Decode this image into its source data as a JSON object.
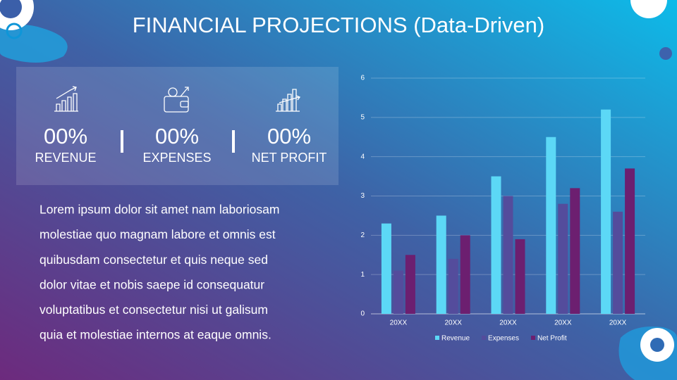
{
  "header": {
    "title": "FINANCIAL PROJECTIONS (Data-Driven)"
  },
  "stats": [
    {
      "value": "00%",
      "label": "REVENUE"
    },
    {
      "value": "00%",
      "label": "EXPENSES"
    },
    {
      "value": "00%",
      "label": "NET PROFIT"
    }
  ],
  "paragraph": {
    "lines": [
      "Lorem ipsum dolor sit amet nam laboriosam",
      "molestiae quo magnam labore et omnis est",
      "quibusdam consectetur et quis neque sed",
      "dolor vitae et nobis saepe id consequatur",
      "voluptatibus et consectetur nisi ut galisum",
      "quia et molestiae internos at eaque omnis."
    ]
  },
  "chart_data": {
    "type": "bar",
    "categories": [
      "20XX",
      "20XX",
      "20XX",
      "20XX",
      "20XX"
    ],
    "series": [
      {
        "name": "Revenue",
        "color": "#5cd8f6",
        "values": [
          2.3,
          2.5,
          3.5,
          4.5,
          5.2
        ]
      },
      {
        "name": "Expenses",
        "color": "#544c9c",
        "values": [
          1.1,
          1.4,
          3.0,
          2.8,
          2.6
        ]
      },
      {
        "name": "Net Profit",
        "color": "#6c1f70",
        "values": [
          1.5,
          2.0,
          1.9,
          3.2,
          3.7
        ]
      }
    ],
    "ylim": [
      0,
      6
    ],
    "yticks": [
      0,
      1,
      2,
      3,
      4,
      5,
      6
    ],
    "grid": true,
    "legend": "bottom"
  }
}
